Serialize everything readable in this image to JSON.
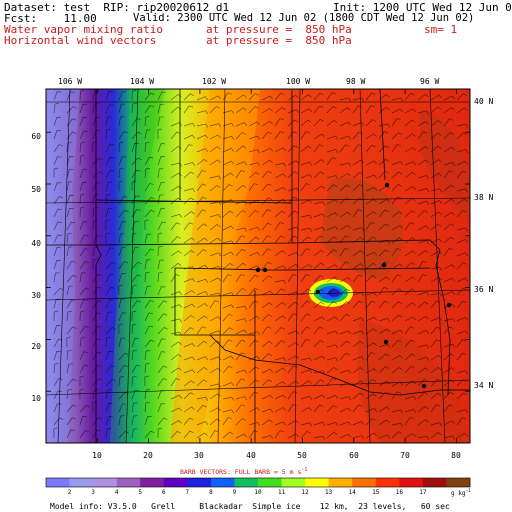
{
  "header": {
    "dataset_line": "Dataset: test  RIP: rip20020612_d1",
    "init_line": "Init: 1200 UTC Wed 12 Jun 02",
    "fcst_line": "Fcst:    11.00",
    "valid_line": "Valid: 2300 UTC Wed 12 Jun 02 (1800 CDT Wed 12 Jun 02)",
    "field1_name": "Water vapor mixing ratio",
    "field1_level": "at pressure =  850 hPa",
    "field1_units": "sm= 1",
    "field2_name": "Horizontal wind vectors",
    "field2_level": "at pressure =  850 hPa"
  },
  "map": {
    "lon_labels": [
      "106 W",
      "104 W",
      "102 W",
      "100 W",
      "98 W",
      "96 W"
    ],
    "lat_labels": [
      "40 N",
      "38 N",
      "36 N",
      "34 N"
    ],
    "x_ticks": [
      "10",
      "20",
      "30",
      "40",
      "50",
      "60",
      "70",
      "80"
    ],
    "y_ticks": [
      "10",
      "20",
      "30",
      "40",
      "50",
      "60"
    ]
  },
  "barb_note": "BARB VECTORS:  FULL BARB = 5 m s",
  "barb_note_sup": "-1",
  "colorbar": {
    "labels": [
      "2",
      "3",
      "4",
      "5",
      "6",
      "7",
      "8",
      "9",
      "10",
      "11",
      "12",
      "13",
      "14",
      "15",
      "16",
      "17"
    ],
    "units": "g kg",
    "units_sup": "-1",
    "colors": [
      "#7a7aff",
      "#9a9af0",
      "#b090e0",
      "#a060c0",
      "#8020a0",
      "#6000c0",
      "#2020e0",
      "#1060ff",
      "#10c060",
      "#40e020",
      "#a0ff20",
      "#ffff00",
      "#ffb000",
      "#ff7000",
      "#ff3000",
      "#e01010",
      "#a01010",
      "#804010"
    ]
  },
  "footer": "Model info: V3.5.0   Grell     Blackadar  Simple ice    12 km,  23 levels,   60 sec"
}
